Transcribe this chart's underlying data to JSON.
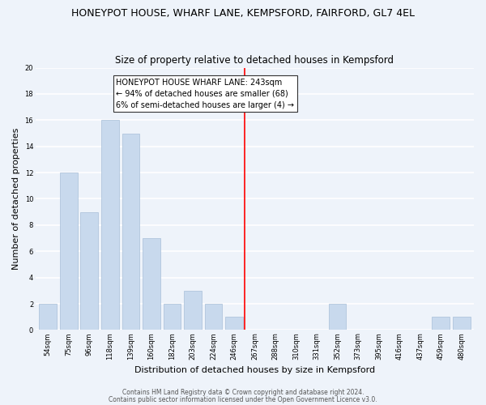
{
  "title": "HONEYPOT HOUSE, WHARF LANE, KEMPSFORD, FAIRFORD, GL7 4EL",
  "subtitle": "Size of property relative to detached houses in Kempsford",
  "xlabel": "Distribution of detached houses by size in Kempsford",
  "ylabel": "Number of detached properties",
  "bar_labels": [
    "54sqm",
    "75sqm",
    "96sqm",
    "118sqm",
    "139sqm",
    "160sqm",
    "182sqm",
    "203sqm",
    "224sqm",
    "246sqm",
    "267sqm",
    "288sqm",
    "310sqm",
    "331sqm",
    "352sqm",
    "373sqm",
    "395sqm",
    "416sqm",
    "437sqm",
    "459sqm",
    "480sqm"
  ],
  "bar_values": [
    2,
    12,
    9,
    16,
    15,
    7,
    2,
    3,
    2,
    1,
    0,
    0,
    0,
    0,
    2,
    0,
    0,
    0,
    0,
    1,
    1
  ],
  "bar_color": "#c8d9ed",
  "bar_edge_color": "#a8bfd8",
  "vline_x_idx": 9.5,
  "vline_color": "red",
  "annotation_line1": "HONEYPOT HOUSE WHARF LANE: 243sqm",
  "annotation_line2": "← 94% of detached houses are smaller (68)",
  "annotation_line3": "6% of semi-detached houses are larger (4) →",
  "annotation_box_facecolor": "white",
  "annotation_box_edgecolor": "#333333",
  "ylim": [
    0,
    20
  ],
  "yticks": [
    0,
    2,
    4,
    6,
    8,
    10,
    12,
    14,
    16,
    18,
    20
  ],
  "footer1": "Contains HM Land Registry data © Crown copyright and database right 2024.",
  "footer2": "Contains public sector information licensed under the Open Government Licence v3.0.",
  "background_color": "#eef3fa",
  "grid_color": "white",
  "title_fontsize": 9,
  "subtitle_fontsize": 8.5,
  "ylabel_fontsize": 8,
  "xlabel_fontsize": 8,
  "tick_fontsize": 6,
  "annotation_fontsize": 7,
  "footer_fontsize": 5.5
}
